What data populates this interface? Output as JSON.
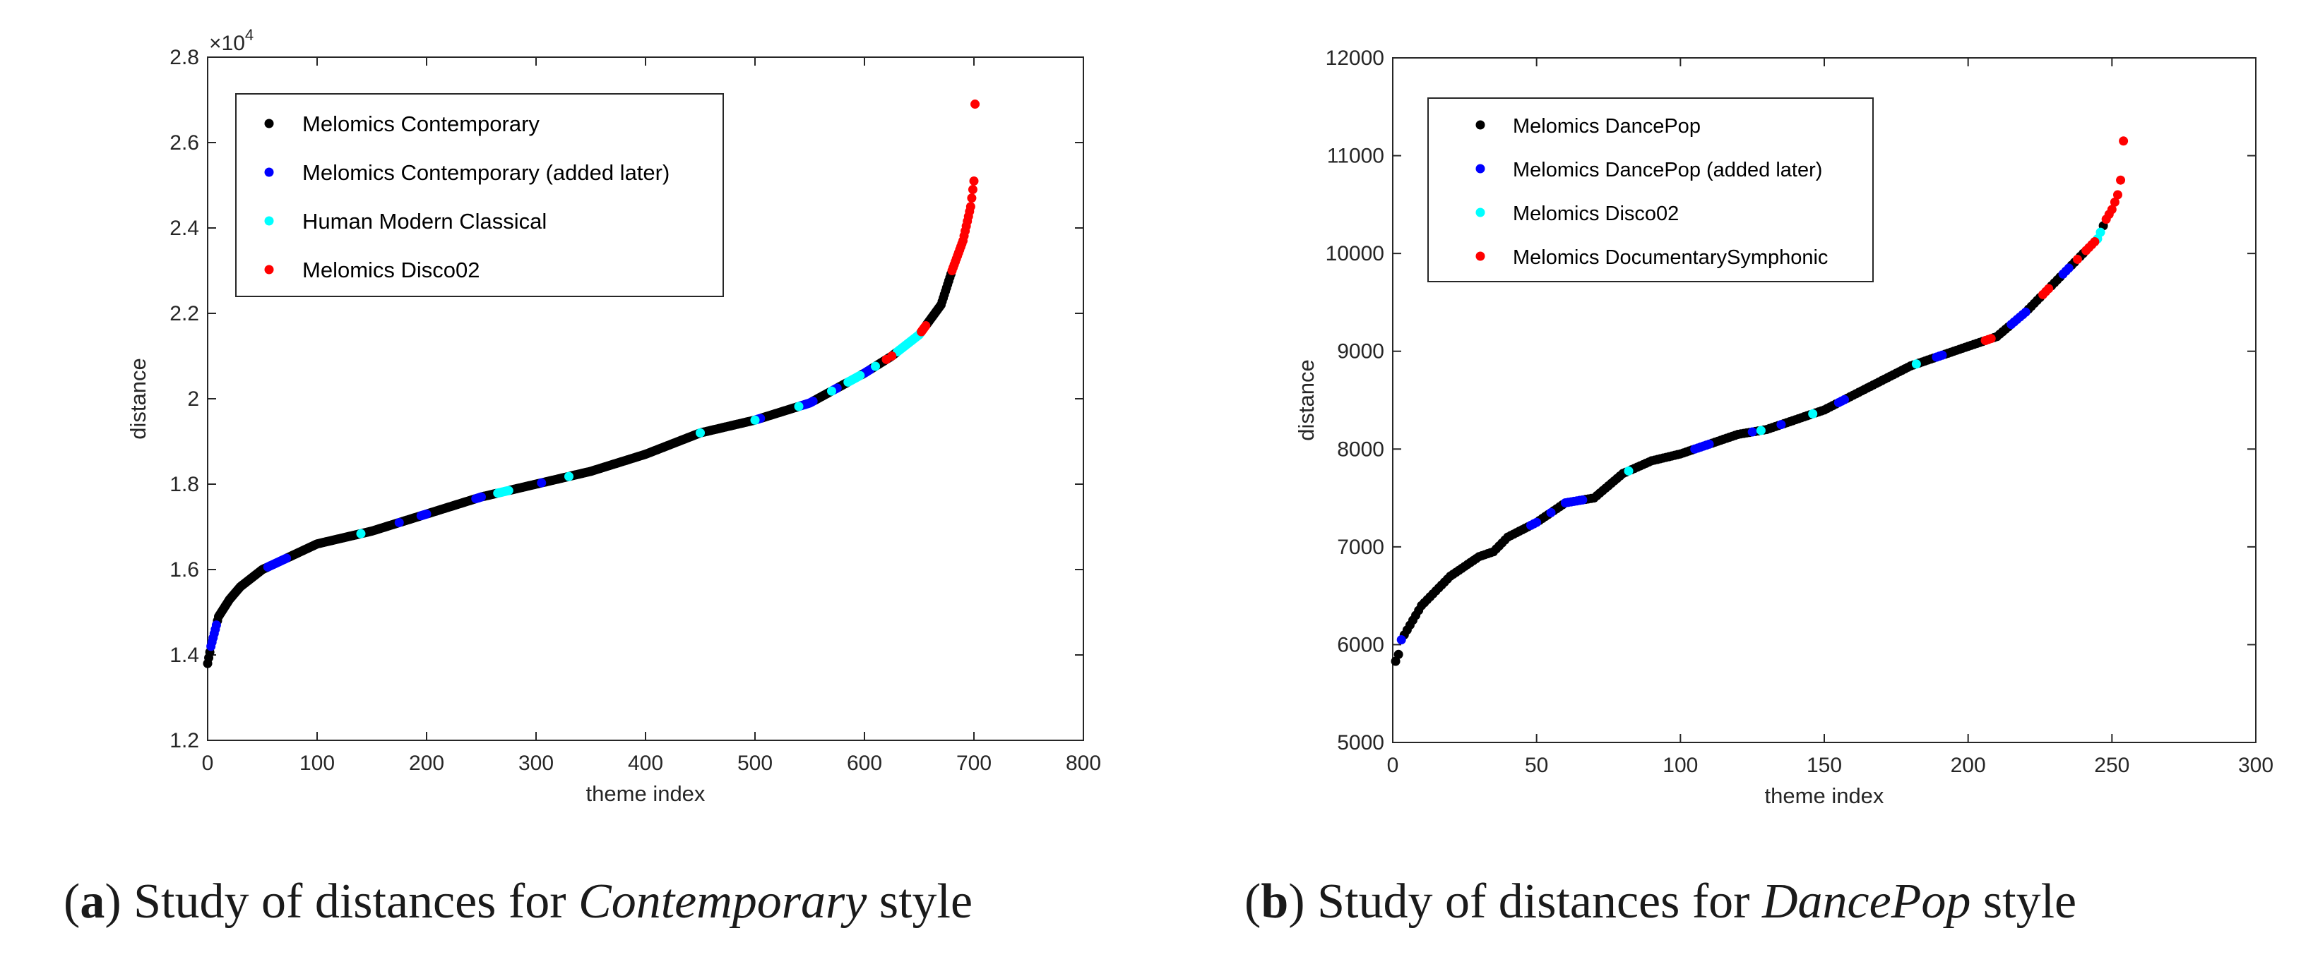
{
  "chart_data": [
    {
      "type": "scatter",
      "panel": "a",
      "caption": {
        "open": "(",
        "letter": "a",
        "close": ")",
        "pre": " Study of distances for ",
        "style": "Contemporary",
        "post": " style"
      },
      "xlabel": "theme index",
      "ylabel": "distance",
      "xlim": [
        0,
        800
      ],
      "ylim": [
        12000,
        28000
      ],
      "xticks": [
        0,
        100,
        200,
        300,
        400,
        500,
        600,
        700,
        800
      ],
      "yticks": [
        12000,
        14000,
        16000,
        18000,
        20000,
        22000,
        24000,
        26000,
        28000
      ],
      "ytick_labels": [
        "1.2",
        "1.4",
        "1.6",
        "1.8",
        "2",
        "2.2",
        "2.4",
        "2.6",
        "2.8"
      ],
      "y_multiplier": {
        "base": "×10",
        "exp": "4"
      },
      "legend_position": "top-left",
      "series": [
        {
          "name": "Melomics Contemporary",
          "color": "#000000"
        },
        {
          "name": "Melomics Contemporary (added later)",
          "color": "#0000ff"
        },
        {
          "name": "Human Modern Classical",
          "color": "#00ffff"
        },
        {
          "name": "Melomics Disco02",
          "color": "#ff0000"
        }
      ],
      "n_points": 702,
      "curve": [
        [
          0,
          13800
        ],
        [
          3,
          14200
        ],
        [
          10,
          14900
        ],
        [
          20,
          15300
        ],
        [
          30,
          15600
        ],
        [
          50,
          16000
        ],
        [
          100,
          16600
        ],
        [
          150,
          16900
        ],
        [
          200,
          17300
        ],
        [
          250,
          17700
        ],
        [
          300,
          18000
        ],
        [
          350,
          18300
        ],
        [
          400,
          18700
        ],
        [
          450,
          19200
        ],
        [
          500,
          19500
        ],
        [
          550,
          19900
        ],
        [
          600,
          20600
        ],
        [
          625,
          21000
        ],
        [
          650,
          21500
        ],
        [
          670,
          22200
        ],
        [
          680,
          23000
        ],
        [
          690,
          23700
        ],
        [
          697,
          24500
        ],
        [
          700,
          25100
        ],
        [
          701,
          26900
        ]
      ],
      "highlights": [
        {
          "series": 1,
          "x": [
            3,
            8,
            55,
            60,
            64,
            68,
            72,
            140,
            175,
            195,
            200,
            245,
            250,
            305,
            330,
            500,
            505,
            540,
            545,
            553,
            570,
            575,
            600,
            605
          ],
          "bridge": 12
        },
        {
          "series": 2,
          "x": [
            140,
            265,
            270,
            275,
            330,
            450,
            500,
            540,
            570,
            585,
            590,
            596,
            610,
            630,
            640,
            645,
            650,
            655,
            690,
            694,
            696,
            698,
            699
          ],
          "bridge": 12
        },
        {
          "series": 3,
          "x": [
            620,
            625,
            652,
            656,
            680,
            684,
            688,
            692,
            695,
            699,
            700,
            701
          ],
          "bridge": 4
        }
      ]
    },
    {
      "type": "scatter",
      "panel": "b",
      "caption": {
        "open": "(",
        "letter": "b",
        "close": ")",
        "pre": " Study of distances for ",
        "style": "DancePop",
        "post": " style"
      },
      "xlabel": "theme index",
      "ylabel": "distance",
      "xlim": [
        0,
        300
      ],
      "ylim": [
        5000,
        12000
      ],
      "xticks": [
        0,
        50,
        100,
        150,
        200,
        250,
        300
      ],
      "yticks": [
        5000,
        6000,
        7000,
        8000,
        9000,
        10000,
        11000,
        12000
      ],
      "ytick_labels": [
        "5000",
        "6000",
        "7000",
        "8000",
        "9000",
        "10000",
        "11000",
        "12000"
      ],
      "legend_position": "top-left",
      "series": [
        {
          "name": "Melomics DancePop",
          "color": "#000000"
        },
        {
          "name": "Melomics DancePop (added later)",
          "color": "#0000ff"
        },
        {
          "name": "Melomics Disco02",
          "color": "#00ffff"
        },
        {
          "name": "Melomics DocumentarySymphonic",
          "color": "#ff0000"
        }
      ],
      "n_points": 254,
      "curve": [
        [
          1,
          5830
        ],
        [
          2,
          5900
        ],
        [
          3,
          6050
        ],
        [
          5,
          6150
        ],
        [
          10,
          6400
        ],
        [
          20,
          6700
        ],
        [
          30,
          6900
        ],
        [
          35,
          6950
        ],
        [
          40,
          7100
        ],
        [
          50,
          7250
        ],
        [
          60,
          7450
        ],
        [
          70,
          7500
        ],
        [
          80,
          7750
        ],
        [
          90,
          7880
        ],
        [
          100,
          7950
        ],
        [
          110,
          8050
        ],
        [
          120,
          8150
        ],
        [
          130,
          8200
        ],
        [
          140,
          8300
        ],
        [
          150,
          8400
        ],
        [
          160,
          8550
        ],
        [
          170,
          8700
        ],
        [
          180,
          8850
        ],
        [
          190,
          8950
        ],
        [
          200,
          9050
        ],
        [
          210,
          9150
        ],
        [
          220,
          9400
        ],
        [
          230,
          9700
        ],
        [
          240,
          10000
        ],
        [
          245,
          10150
        ],
        [
          248,
          10350
        ],
        [
          250,
          10450
        ],
        [
          252,
          10600
        ],
        [
          253,
          10750
        ],
        [
          254,
          11150
        ]
      ],
      "highlights": [
        {
          "series": 1,
          "x": [
            3,
            48,
            50,
            55,
            60,
            63,
            66,
            105,
            107,
            110,
            125,
            135,
            155,
            157,
            189,
            191,
            215,
            217,
            220,
            233,
            235
          ],
          "bridge": 4
        },
        {
          "series": 2,
          "x": [
            82,
            128,
            146,
            182,
            245,
            246
          ],
          "bridge": 0
        },
        {
          "series": 3,
          "x": [
            206,
            208,
            226,
            228,
            238,
            241,
            242,
            244,
            248,
            249,
            250,
            251,
            252,
            254
          ],
          "bridge": 2
        }
      ]
    }
  ]
}
